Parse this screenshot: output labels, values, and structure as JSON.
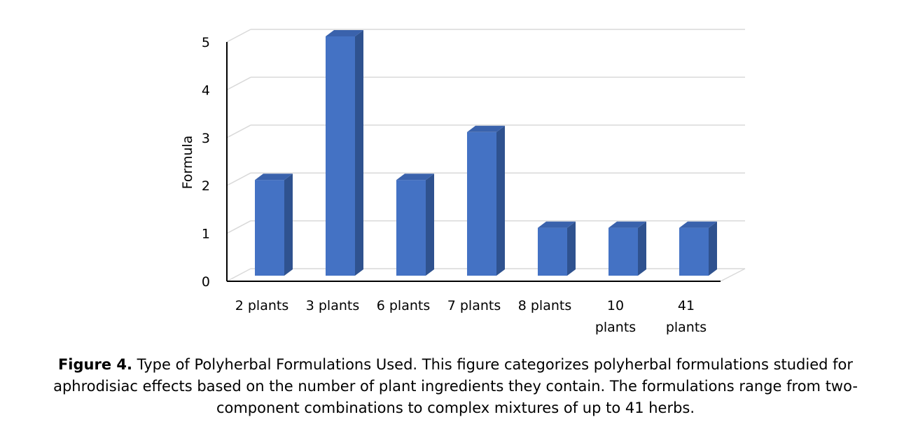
{
  "chart_data": {
    "type": "bar",
    "categories": [
      "2 plants",
      "3 plants",
      "6 plants",
      "7 plants",
      "8 plants",
      "10 plants",
      "41 plants"
    ],
    "category_lines": [
      [
        "2 plants"
      ],
      [
        "3 plants"
      ],
      [
        "6 plants"
      ],
      [
        "7 plants"
      ],
      [
        "8 plants"
      ],
      [
        "10",
        "plants"
      ],
      [
        "41",
        "plants"
      ]
    ],
    "values": [
      2,
      5,
      2,
      3,
      1,
      1,
      1
    ],
    "title": "",
    "xlabel": "",
    "ylabel": "Formula",
    "ylim": [
      0,
      5
    ],
    "yticks": [
      "0",
      "1",
      "2",
      "3",
      "4",
      "5"
    ],
    "grid": true,
    "style": "3d-column",
    "colors": {
      "bar_front": "#4472C4",
      "bar_side": "#2F528F",
      "bar_top": "#3A62AC",
      "grid": "#D9D9D9",
      "axis": "#000000"
    }
  },
  "caption": {
    "label": "Figure 4.",
    "text": " Type of Polyherbal Formulations Used. This figure categorizes polyherbal formulations studied for aphrodisiac effects based on the number of plant ingredients they contain. The formulations range from two-component combinations to complex mixtures of up to 41 herbs."
  }
}
